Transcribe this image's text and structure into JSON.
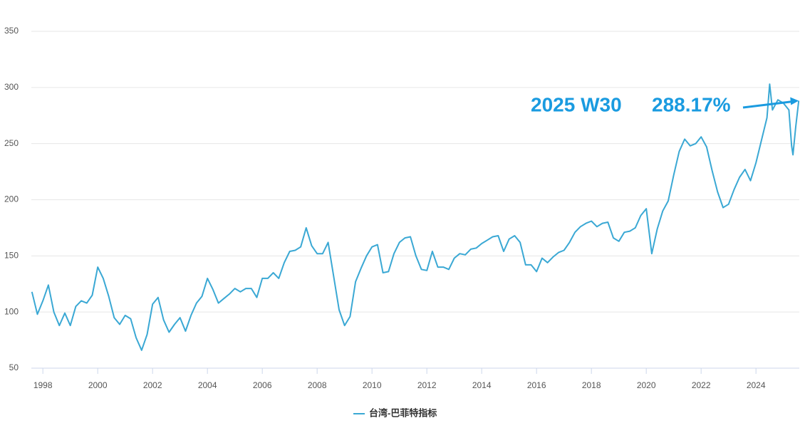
{
  "chart_data": {
    "type": "line",
    "x": [
      1997.6,
      1997.8,
      1998.0,
      1998.2,
      1998.4,
      1998.6,
      1998.8,
      1999.0,
      1999.2,
      1999.4,
      1999.6,
      1999.8,
      2000.0,
      2000.2,
      2000.4,
      2000.6,
      2000.8,
      2001.0,
      2001.2,
      2001.4,
      2001.6,
      2001.8,
      2002.0,
      2002.2,
      2002.4,
      2002.6,
      2002.8,
      2003.0,
      2003.2,
      2003.4,
      2003.6,
      2003.8,
      2004.0,
      2004.2,
      2004.4,
      2004.6,
      2004.8,
      2005.0,
      2005.2,
      2005.4,
      2005.6,
      2005.8,
      2006.0,
      2006.2,
      2006.4,
      2006.6,
      2006.8,
      2007.0,
      2007.2,
      2007.4,
      2007.6,
      2007.8,
      2008.0,
      2008.2,
      2008.4,
      2008.6,
      2008.8,
      2009.0,
      2009.2,
      2009.4,
      2009.6,
      2009.8,
      2010.0,
      2010.2,
      2010.4,
      2010.6,
      2010.8,
      2011.0,
      2011.2,
      2011.4,
      2011.6,
      2011.8,
      2012.0,
      2012.2,
      2012.4,
      2012.6,
      2012.8,
      2013.0,
      2013.2,
      2013.4,
      2013.6,
      2013.8,
      2014.0,
      2014.2,
      2014.4,
      2014.6,
      2014.8,
      2015.0,
      2015.2,
      2015.4,
      2015.6,
      2015.8,
      2016.0,
      2016.2,
      2016.4,
      2016.6,
      2016.8,
      2017.0,
      2017.2,
      2017.4,
      2017.6,
      2017.8,
      2018.0,
      2018.2,
      2018.4,
      2018.6,
      2018.8,
      2019.0,
      2019.2,
      2019.4,
      2019.6,
      2019.8,
      2020.0,
      2020.2,
      2020.4,
      2020.6,
      2020.8,
      2021.0,
      2021.2,
      2021.4,
      2021.6,
      2021.8,
      2022.0,
      2022.2,
      2022.4,
      2022.6,
      2022.8,
      2023.0,
      2023.2,
      2023.4,
      2023.6,
      2023.8,
      2024.0,
      2024.2,
      2024.4,
      2024.5,
      2024.6,
      2024.8,
      2025.0,
      2025.2,
      2025.3,
      2025.35,
      2025.45,
      2025.56
    ],
    "series": [
      {
        "name": "台湾-巴菲特指标",
        "color": "#3aa8d4",
        "values": [
          118,
          98,
          110,
          124,
          100,
          88,
          99,
          88,
          105,
          110,
          108,
          115,
          140,
          130,
          114,
          95,
          89,
          97,
          94,
          77,
          66,
          80,
          107,
          113,
          93,
          82,
          89,
          95,
          83,
          97,
          108,
          114,
          130,
          120,
          108,
          112,
          116,
          121,
          118,
          121,
          121,
          113,
          130,
          130,
          135,
          130,
          144,
          154,
          155,
          158,
          175,
          159,
          152,
          152,
          162,
          132,
          102,
          88,
          96,
          127,
          139,
          150,
          158,
          160,
          135,
          136,
          152,
          162,
          166,
          167,
          150,
          138,
          137,
          154,
          140,
          140,
          138,
          148,
          152,
          151,
          156,
          157,
          161,
          164,
          167,
          168,
          154,
          165,
          168,
          162,
          142,
          142,
          136,
          148,
          144,
          149,
          153,
          155,
          162,
          171,
          176,
          179,
          181,
          176,
          179,
          180,
          166,
          163,
          171,
          172,
          175,
          186,
          192,
          152,
          174,
          190,
          199,
          222,
          243,
          254,
          248,
          250,
          256,
          247,
          226,
          207,
          193,
          196,
          209,
          220,
          227,
          217,
          233,
          253,
          273,
          303,
          280,
          289,
          286,
          280,
          248,
          240,
          265,
          288.17
        ]
      }
    ],
    "xlim": [
      1997.58,
      2025.58
    ],
    "ylim": [
      50,
      350
    ],
    "xticks": [
      1998,
      2000,
      2002,
      2004,
      2006,
      2008,
      2010,
      2012,
      2014,
      2016,
      2018,
      2020,
      2022,
      2024
    ],
    "yticks": [
      50,
      100,
      150,
      200,
      250,
      300,
      350
    ],
    "grid": true,
    "legend": "bottom",
    "annotation": {
      "label": "2025 W30",
      "value_label": "288.17%",
      "color": "#1a9be0"
    }
  }
}
